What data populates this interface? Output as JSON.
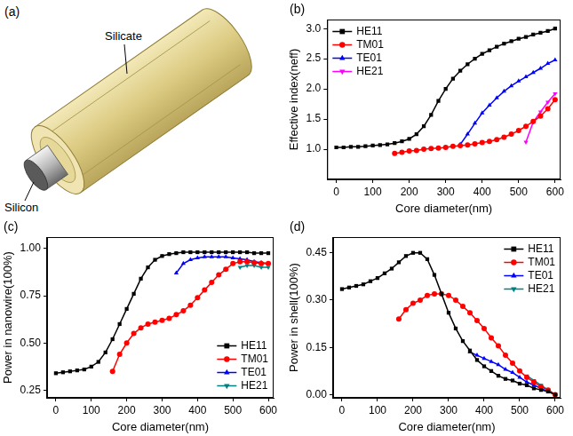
{
  "diagram": {
    "panel_label": "(a)",
    "parts": [
      {
        "label": "Silicate"
      },
      {
        "label": "Silicon"
      }
    ]
  },
  "chart_data": [
    {
      "type": "line",
      "panel_label": "(b)",
      "x_label": "Core diameter(nm)",
      "y_label": "Effective index(neff)",
      "xlim": [
        -25,
        615
      ],
      "xticks": [
        0,
        100,
        200,
        300,
        400,
        500,
        600
      ],
      "ylim": [
        0.5,
        3.15
      ],
      "yticks": [
        {
          "value": 1.0,
          "label": "1.0"
        },
        1.5,
        {
          "value": 2.0,
          "label": "2.0"
        },
        2.5,
        {
          "value": 3.0,
          "label": "3.0"
        }
      ],
      "grid": false,
      "legend": "upper left",
      "series": [
        {
          "name": "HE11",
          "color": "#000000",
          "marker": "square",
          "x": [
            0,
            20,
            40,
            60,
            80,
            100,
            120,
            140,
            160,
            180,
            200,
            220,
            240,
            260,
            280,
            300,
            320,
            340,
            360,
            380,
            400,
            420,
            440,
            460,
            480,
            500,
            520,
            540,
            560,
            580,
            600
          ],
          "values": [
            1.03,
            1.03,
            1.04,
            1.04,
            1.05,
            1.06,
            1.07,
            1.08,
            1.1,
            1.13,
            1.17,
            1.25,
            1.38,
            1.57,
            1.8,
            2.0,
            2.17,
            2.3,
            2.41,
            2.5,
            2.58,
            2.64,
            2.7,
            2.75,
            2.79,
            2.83,
            2.86,
            2.9,
            2.93,
            2.96,
            3.0
          ]
        },
        {
          "name": "TM01",
          "color": "#ff0000",
          "marker": "circle",
          "x": [
            160,
            180,
            200,
            220,
            240,
            260,
            280,
            300,
            320,
            340,
            360,
            380,
            400,
            420,
            440,
            460,
            480,
            500,
            520,
            540,
            560,
            580,
            600
          ],
          "values": [
            0.93,
            0.95,
            0.97,
            0.98,
            1.0,
            1.01,
            1.02,
            1.03,
            1.05,
            1.06,
            1.07,
            1.09,
            1.11,
            1.13,
            1.16,
            1.2,
            1.25,
            1.31,
            1.38,
            1.46,
            1.55,
            1.67,
            1.82
          ]
        },
        {
          "name": "TE01",
          "color": "#0000ff",
          "marker": "triangle",
          "x": [
            340,
            360,
            380,
            400,
            420,
            440,
            460,
            480,
            500,
            520,
            540,
            560,
            580,
            600
          ],
          "values": [
            1.08,
            1.25,
            1.43,
            1.6,
            1.73,
            1.85,
            1.96,
            2.05,
            2.13,
            2.2,
            2.27,
            2.34,
            2.42,
            2.48
          ]
        },
        {
          "name": "HE21",
          "color": "#ff00ff",
          "marker": "triangle_down",
          "x": [
            520,
            540,
            560,
            580,
            600
          ],
          "values": [
            1.12,
            1.45,
            1.62,
            1.78,
            1.92
          ]
        }
      ]
    },
    {
      "type": "line",
      "panel_label": "(c)",
      "x_label": "Core diameter(nm)",
      "y_label": "Power in nanowire(100%)",
      "xlim": [
        -25,
        615
      ],
      "xticks": [
        0,
        100,
        200,
        300,
        400,
        500,
        600
      ],
      "ylim": [
        0.21,
        1.06
      ],
      "yticks": [
        0.25,
        {
          "value": 0.5,
          "label": "0.50"
        },
        0.75,
        {
          "value": 1.0,
          "label": "1.00"
        }
      ],
      "grid": false,
      "legend": "lower right",
      "series": [
        {
          "name": "HE11",
          "color": "#000000",
          "marker": "square",
          "x": [
            0,
            20,
            40,
            60,
            80,
            100,
            120,
            140,
            160,
            180,
            200,
            220,
            240,
            260,
            280,
            300,
            320,
            340,
            360,
            380,
            400,
            420,
            440,
            460,
            480,
            500,
            520,
            540,
            560,
            580,
            600
          ],
          "values": [
            0.34,
            0.345,
            0.35,
            0.355,
            0.36,
            0.375,
            0.4,
            0.45,
            0.52,
            0.6,
            0.68,
            0.76,
            0.84,
            0.9,
            0.94,
            0.96,
            0.97,
            0.975,
            0.98,
            0.98,
            0.98,
            0.98,
            0.98,
            0.98,
            0.98,
            0.98,
            0.98,
            0.98,
            0.975,
            0.975,
            0.975
          ]
        },
        {
          "name": "TM01",
          "color": "#ff0000",
          "marker": "circle",
          "x": [
            160,
            180,
            200,
            220,
            240,
            260,
            280,
            300,
            320,
            340,
            360,
            380,
            400,
            420,
            440,
            460,
            480,
            500,
            520,
            540,
            560,
            580,
            600
          ],
          "values": [
            0.35,
            0.44,
            0.5,
            0.55,
            0.58,
            0.6,
            0.61,
            0.62,
            0.63,
            0.65,
            0.67,
            0.7,
            0.74,
            0.78,
            0.82,
            0.86,
            0.89,
            0.92,
            0.93,
            0.93,
            0.925,
            0.92,
            0.92
          ]
        },
        {
          "name": "TE01",
          "color": "#0000ff",
          "marker": "triangle",
          "x": [
            340,
            360,
            380,
            400,
            420,
            440,
            460,
            480,
            500,
            520,
            540,
            560,
            580,
            600
          ],
          "values": [
            0.87,
            0.92,
            0.94,
            0.95,
            0.955,
            0.955,
            0.955,
            0.955,
            0.95,
            0.945,
            0.94,
            0.93,
            0.925,
            0.92
          ]
        },
        {
          "name": "HE21",
          "color": "#008080",
          "marker": "triangle_down",
          "x": [
            520,
            540,
            560,
            580,
            600
          ],
          "values": [
            0.9,
            0.91,
            0.91,
            0.9,
            0.9
          ]
        }
      ]
    },
    {
      "type": "line",
      "panel_label": "(d)",
      "x_label": "Core diameter(nm)",
      "y_label": "Power in shell(100%)",
      "xlim": [
        -25,
        615
      ],
      "xticks": [
        0,
        100,
        200,
        300,
        400,
        500,
        600
      ],
      "ylim": [
        -0.01,
        0.5
      ],
      "yticks": [
        {
          "value": 0,
          "label": "0.00"
        },
        0.15,
        {
          "value": 0.3,
          "label": "0.30"
        },
        0.45
      ],
      "grid": false,
      "legend": "upper right",
      "series": [
        {
          "name": "HE11",
          "color": "#000000",
          "marker": "square",
          "x": [
            0,
            20,
            40,
            60,
            80,
            100,
            120,
            140,
            160,
            180,
            200,
            220,
            240,
            260,
            280,
            300,
            320,
            340,
            360,
            380,
            400,
            420,
            440,
            460,
            480,
            500,
            520,
            540,
            560,
            580,
            600
          ],
          "values": [
            0.335,
            0.34,
            0.345,
            0.35,
            0.36,
            0.37,
            0.385,
            0.4,
            0.42,
            0.44,
            0.45,
            0.45,
            0.43,
            0.38,
            0.32,
            0.26,
            0.21,
            0.17,
            0.14,
            0.11,
            0.09,
            0.075,
            0.06,
            0.05,
            0.045,
            0.035,
            0.03,
            0.02,
            0.015,
            0.01,
            0.0
          ]
        },
        {
          "name": "TM01",
          "color": "#ff0000",
          "marker": "circle",
          "x": [
            160,
            180,
            200,
            220,
            240,
            260,
            280,
            300,
            320,
            340,
            360,
            380,
            400,
            420,
            440,
            460,
            480,
            500,
            520,
            540,
            560,
            580,
            600
          ],
          "values": [
            0.24,
            0.27,
            0.29,
            0.3,
            0.315,
            0.32,
            0.32,
            0.315,
            0.3,
            0.28,
            0.26,
            0.235,
            0.21,
            0.18,
            0.155,
            0.125,
            0.1,
            0.075,
            0.055,
            0.04,
            0.025,
            0.015,
            0.0
          ]
        },
        {
          "name": "TE01",
          "color": "#0000ff",
          "marker": "triangle",
          "x": [
            360,
            380,
            400,
            420,
            440,
            460,
            480,
            500,
            520,
            540,
            560,
            580,
            600
          ],
          "values": [
            0.135,
            0.125,
            0.115,
            0.105,
            0.095,
            0.08,
            0.07,
            0.055,
            0.04,
            0.03,
            0.02,
            0.01,
            0.0
          ]
        },
        {
          "name": "HE21",
          "color": "#008080",
          "marker": "triangle_down",
          "x": [
            520,
            540,
            560,
            580,
            600
          ],
          "values": [
            0.06,
            0.045,
            0.03,
            0.015,
            0.0
          ]
        }
      ]
    }
  ]
}
